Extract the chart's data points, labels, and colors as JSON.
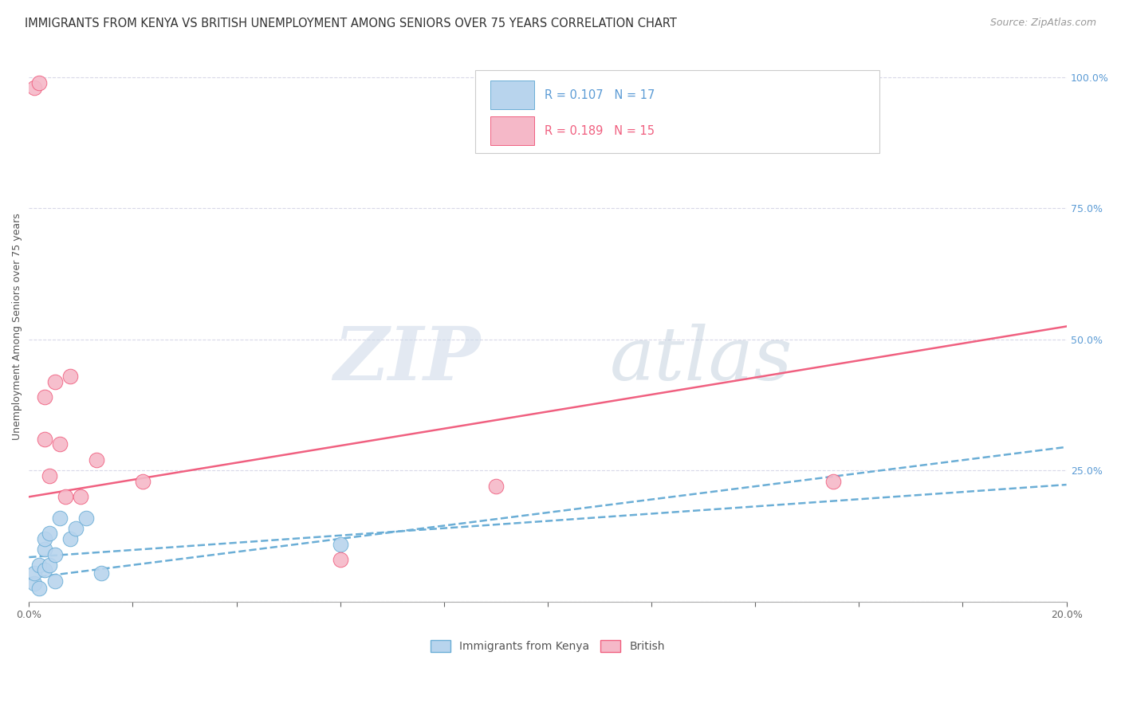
{
  "title": "IMMIGRANTS FROM KENYA VS BRITISH UNEMPLOYMENT AMONG SENIORS OVER 75 YEARS CORRELATION CHART",
  "source": "Source: ZipAtlas.com",
  "ylabel": "Unemployment Among Seniors over 75 years",
  "xlim": [
    0.0,
    0.2
  ],
  "ylim": [
    0.0,
    1.05
  ],
  "xticks": [
    0.0,
    0.02,
    0.04,
    0.06,
    0.08,
    0.1,
    0.12,
    0.14,
    0.16,
    0.18,
    0.2
  ],
  "xticklabels": [
    "0.0%",
    "",
    "",
    "",
    "",
    "",
    "",
    "",
    "",
    "",
    "20.0%"
  ],
  "yticks_right": [
    0.0,
    0.25,
    0.5,
    0.75,
    1.0
  ],
  "ytick_right_labels": [
    "",
    "25.0%",
    "50.0%",
    "75.0%",
    "100.0%"
  ],
  "kenya_R": 0.107,
  "kenya_N": 17,
  "british_R": 0.189,
  "british_N": 15,
  "kenya_color": "#b8d4ed",
  "british_color": "#f5b8c8",
  "kenya_line_color": "#6baed6",
  "british_line_color": "#f06080",
  "watermark_zip": "ZIP",
  "watermark_atlas": "atlas",
  "kenya_x": [
    0.001,
    0.001,
    0.002,
    0.002,
    0.003,
    0.003,
    0.003,
    0.004,
    0.004,
    0.005,
    0.005,
    0.006,
    0.008,
    0.009,
    0.011,
    0.014,
    0.06
  ],
  "kenya_y": [
    0.035,
    0.055,
    0.07,
    0.025,
    0.1,
    0.06,
    0.12,
    0.13,
    0.07,
    0.09,
    0.04,
    0.16,
    0.12,
    0.14,
    0.16,
    0.055,
    0.11
  ],
  "british_x": [
    0.001,
    0.002,
    0.003,
    0.003,
    0.004,
    0.005,
    0.006,
    0.007,
    0.008,
    0.01,
    0.013,
    0.022,
    0.06,
    0.09,
    0.155
  ],
  "british_y": [
    0.98,
    0.99,
    0.31,
    0.39,
    0.24,
    0.42,
    0.3,
    0.2,
    0.43,
    0.2,
    0.27,
    0.23,
    0.08,
    0.22,
    0.23
  ],
  "background_color": "#ffffff",
  "grid_color": "#d8d8e8",
  "title_fontsize": 10.5,
  "axis_label_fontsize": 9,
  "tick_fontsize": 9,
  "source_fontsize": 9,
  "marker_size": 180
}
